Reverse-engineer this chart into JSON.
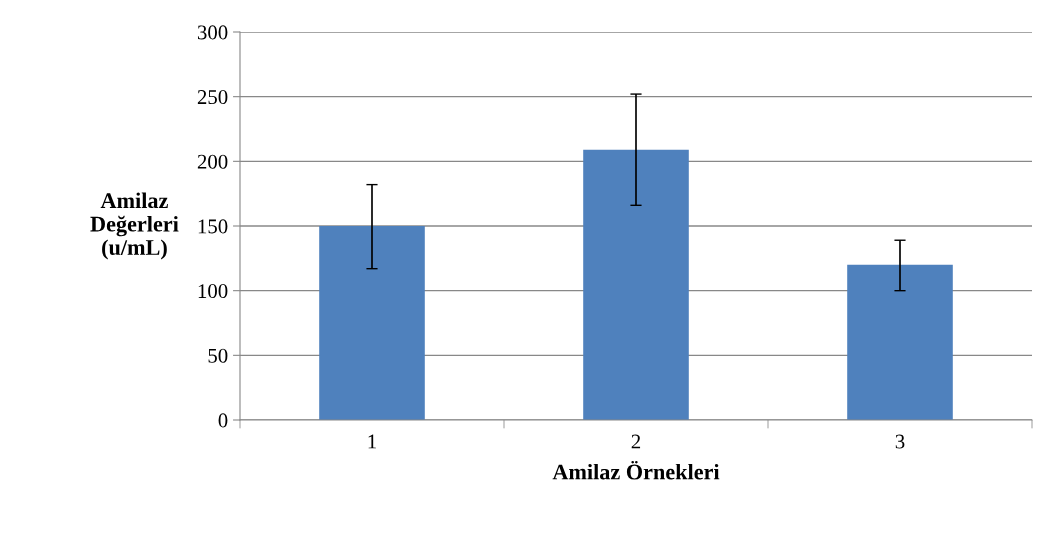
{
  "chart_data": {
    "type": "bar",
    "xlabel": "Amilaz Örnekleri",
    "ylabel": "Amilaz\nDeğerleri\n(u/mL)",
    "categories": [
      "1",
      "2",
      "3"
    ],
    "values": [
      150,
      209,
      120
    ],
    "color": "#4f81bd",
    "errors": [
      [
        117,
        182
      ],
      [
        166,
        252
      ],
      [
        100,
        139
      ]
    ],
    "ylim": [
      0,
      300
    ],
    "yticks": [
      0,
      50,
      100,
      150,
      200,
      250,
      300
    ],
    "grid": "y"
  }
}
